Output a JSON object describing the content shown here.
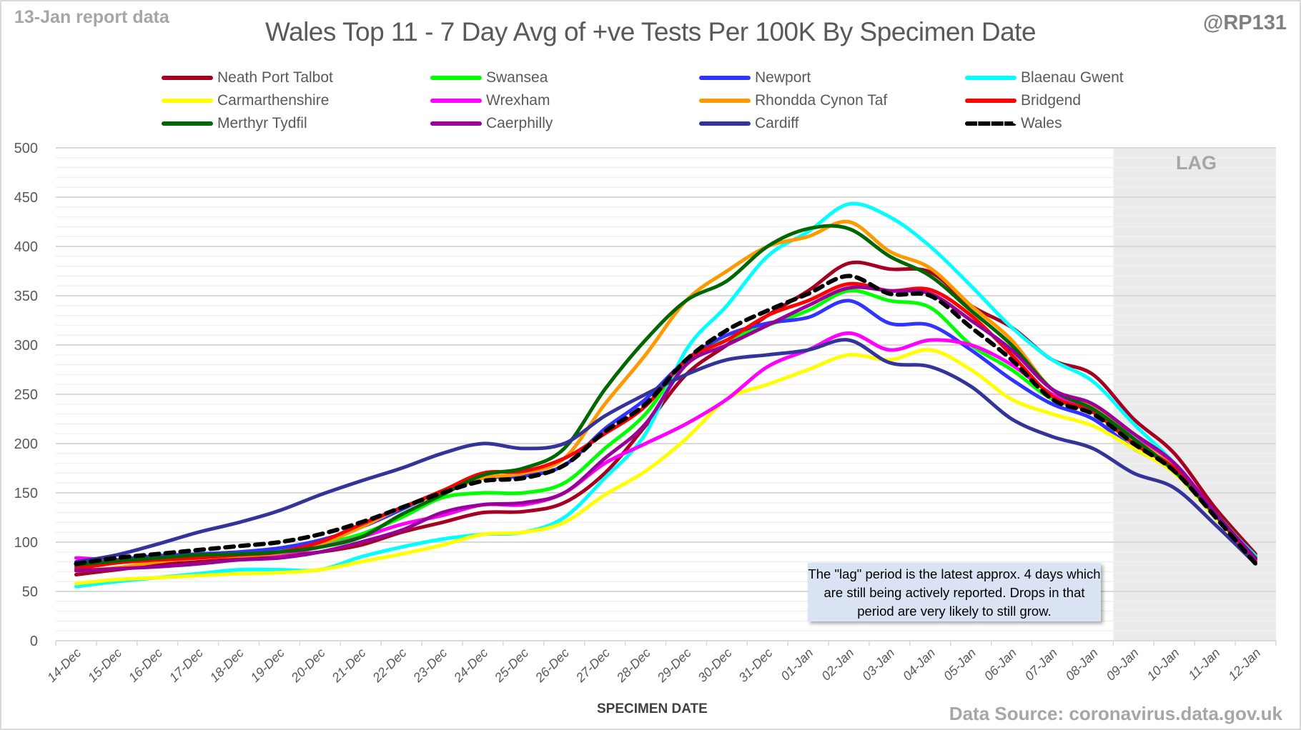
{
  "header": {
    "report_label": "13-Jan report data",
    "handle": "@RP131",
    "source": "Data Source: coronavirus.data.gov.uk"
  },
  "chart_data": {
    "type": "line",
    "title": "Wales Top 11 - 7 Day Avg of +ve Tests Per 100K By Specimen Date",
    "xlabel": "SPECIMEN DATE",
    "ylabel": "",
    "ylim": [
      0,
      500
    ],
    "y_major_ticks": [
      "0",
      "50",
      "100",
      "150",
      "200",
      "250",
      "300",
      "350",
      "400",
      "450",
      "500"
    ],
    "y_minor_step": 10,
    "grid": true,
    "legend_position": "top",
    "x": [
      "14-Dec",
      "15-Dec",
      "16-Dec",
      "17-Dec",
      "18-Dec",
      "19-Dec",
      "20-Dec",
      "21-Dec",
      "22-Dec",
      "23-Dec",
      "24-Dec",
      "25-Dec",
      "26-Dec",
      "27-Dec",
      "28-Dec",
      "29-Dec",
      "30-Dec",
      "31-Dec",
      "01-Jan",
      "02-Jan",
      "03-Jan",
      "04-Jan",
      "05-Jan",
      "06-Jan",
      "07-Jan",
      "08-Jan",
      "09-Jan",
      "10-Jan",
      "11-Jan",
      "12-Jan"
    ],
    "lag_region": {
      "label": "LAG",
      "start": "09-Jan",
      "end": "12-Jan"
    },
    "annotation": "The \"lag\" period is the latest approx. 4 days which are still being actively reported.  Drops in that period are very likely to still grow.",
    "series": [
      {
        "name": "Neath Port Talbot",
        "color": "#a50021",
        "dashed": false,
        "values": [
          67,
          72,
          77,
          80,
          83,
          86,
          90,
          97,
          110,
          120,
          130,
          131,
          140,
          170,
          218,
          270,
          300,
          330,
          355,
          383,
          377,
          374,
          340,
          318,
          285,
          270,
          225,
          190,
          135,
          88
        ]
      },
      {
        "name": "Swansea",
        "color": "#00ff00",
        "dashed": false,
        "values": [
          77,
          82,
          86,
          88,
          89,
          92,
          98,
          108,
          125,
          145,
          150,
          150,
          160,
          195,
          230,
          285,
          305,
          320,
          335,
          355,
          345,
          338,
          300,
          275,
          245,
          232,
          200,
          175,
          130,
          84
        ]
      },
      {
        "name": "Newport",
        "color": "#3333ff",
        "dashed": false,
        "values": [
          75,
          82,
          86,
          88,
          90,
          94,
          102,
          115,
          133,
          152,
          165,
          167,
          178,
          215,
          245,
          285,
          310,
          322,
          328,
          345,
          322,
          320,
          295,
          265,
          240,
          225,
          195,
          172,
          125,
          80
        ]
      },
      {
        "name": "Blaenau Gwent",
        "color": "#00ffff",
        "dashed": false,
        "values": [
          55,
          60,
          64,
          68,
          72,
          72,
          72,
          85,
          95,
          103,
          108,
          110,
          125,
          165,
          210,
          295,
          340,
          390,
          415,
          443,
          430,
          400,
          360,
          318,
          285,
          263,
          220,
          180,
          128,
          86
        ]
      },
      {
        "name": "Carmarthenshire",
        "color": "#ffff00",
        "dashed": false,
        "values": [
          58,
          62,
          64,
          66,
          68,
          69,
          72,
          80,
          88,
          97,
          108,
          110,
          120,
          148,
          172,
          205,
          245,
          260,
          275,
          290,
          285,
          295,
          275,
          245,
          230,
          218,
          195,
          170,
          125,
          80
        ]
      },
      {
        "name": "Wrexham",
        "color": "#ff00ff",
        "dashed": false,
        "values": [
          84,
          82,
          82,
          85,
          87,
          88,
          95,
          105,
          118,
          127,
          138,
          138,
          150,
          180,
          200,
          220,
          245,
          278,
          295,
          312,
          295,
          305,
          300,
          280,
          250,
          235,
          205,
          180,
          130,
          82
        ]
      },
      {
        "name": "Rhondda Cynon Taf",
        "color": "#ff9900",
        "dashed": false,
        "values": [
          71,
          74,
          80,
          84,
          86,
          89,
          98,
          115,
          135,
          150,
          165,
          170,
          185,
          240,
          290,
          345,
          375,
          400,
          410,
          425,
          395,
          378,
          340,
          305,
          255,
          238,
          205,
          175,
          128,
          82
        ]
      },
      {
        "name": "Bridgend",
        "color": "#ff0000",
        "dashed": false,
        "values": [
          73,
          79,
          82,
          84,
          87,
          90,
          100,
          118,
          135,
          152,
          170,
          172,
          185,
          210,
          238,
          285,
          305,
          330,
          345,
          362,
          355,
          356,
          330,
          290,
          248,
          232,
          200,
          175,
          128,
          80
        ]
      },
      {
        "name": "Merthyr Tydfil",
        "color": "#006600",
        "dashed": false,
        "values": [
          77,
          81,
          84,
          87,
          88,
          90,
          95,
          105,
          128,
          148,
          168,
          175,
          195,
          255,
          305,
          345,
          365,
          400,
          418,
          418,
          390,
          370,
          335,
          300,
          255,
          235,
          205,
          172,
          128,
          84
        ]
      },
      {
        "name": "Caerphilly",
        "color": "#990099",
        "dashed": false,
        "values": [
          71,
          73,
          75,
          78,
          82,
          84,
          90,
          100,
          112,
          130,
          138,
          140,
          150,
          185,
          220,
          280,
          300,
          320,
          340,
          358,
          355,
          352,
          325,
          295,
          255,
          240,
          210,
          180,
          130,
          83
        ]
      },
      {
        "name": "Cardiff",
        "color": "#333399",
        "dashed": false,
        "values": [
          80,
          87,
          98,
          110,
          120,
          132,
          148,
          162,
          175,
          190,
          200,
          195,
          200,
          228,
          250,
          270,
          285,
          290,
          295,
          305,
          282,
          278,
          258,
          225,
          207,
          195,
          170,
          155,
          118,
          78
        ]
      },
      {
        "name": "Wales",
        "color": "#000000",
        "dashed": true,
        "values": [
          78,
          84,
          88,
          92,
          96,
          100,
          108,
          120,
          135,
          150,
          162,
          165,
          178,
          212,
          240,
          285,
          315,
          335,
          352,
          370,
          352,
          350,
          318,
          285,
          245,
          230,
          200,
          172,
          126,
          78
        ]
      }
    ]
  }
}
